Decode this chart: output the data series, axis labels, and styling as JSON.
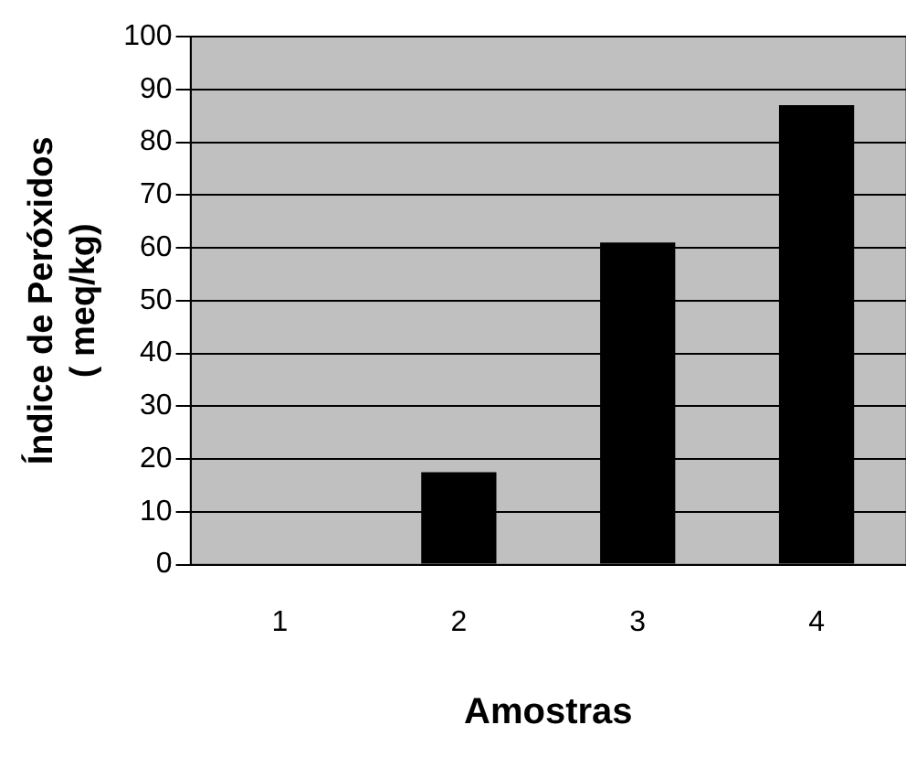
{
  "chart_data": {
    "type": "bar",
    "xlabel": "Amostras",
    "ylabel": "Índice de Peróxidos\n( meq/kg)",
    "categories": [
      "1",
      "2",
      "3",
      "4"
    ],
    "series": [
      {
        "color": "#000000",
        "values": [
          0,
          17.5,
          61,
          87
        ]
      }
    ],
    "ylim": [
      0,
      100
    ],
    "yticks": [
      0,
      10,
      20,
      30,
      40,
      50,
      60,
      70,
      80,
      90,
      100
    ],
    "grid": "y",
    "legend": false
  }
}
